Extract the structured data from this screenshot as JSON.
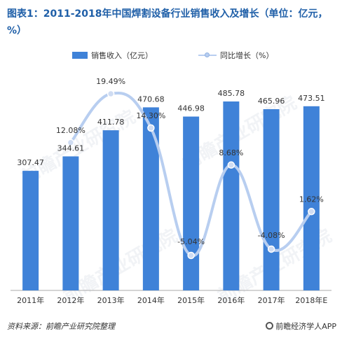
{
  "title": "图表1：2011-2018年中国焊割设备行业销售收入及增长（单位：亿元，%）",
  "legend": {
    "bar": "销售收入（亿元）",
    "line": "同比增长（%）"
  },
  "source": "资料来源：前瞻产业研究院整理",
  "brand": "前瞻经济学人APP",
  "watermark": "前瞻产业研究院",
  "colors": {
    "bar": "#3f82d8",
    "line": "#b8cef0",
    "title": "#1f5fa8"
  },
  "chart_data": {
    "type": "bar",
    "categories": [
      "2011年",
      "2012年",
      "2013年",
      "2014年",
      "2015年",
      "2016年",
      "2017年",
      "2018年E"
    ],
    "series": [
      {
        "name": "销售收入（亿元）",
        "type": "bar",
        "values": [
          307.47,
          344.61,
          411.78,
          470.68,
          446.98,
          485.78,
          465.96,
          473.51
        ],
        "labels": [
          "307.47",
          "344.61",
          "411.78",
          "470.68",
          "446.98",
          "485.78",
          "465.96",
          "473.51"
        ]
      },
      {
        "name": "同比增长（%）",
        "type": "line",
        "values": [
          null,
          12.08,
          19.49,
          14.3,
          -5.04,
          8.68,
          -4.08,
          1.62
        ],
        "labels": [
          "",
          "12.08%",
          "19.49%",
          "14.30%",
          "-5.04%",
          "8.68%",
          "-4.08%",
          "1.62%"
        ]
      }
    ],
    "grid": false,
    "legend_position": "top"
  }
}
